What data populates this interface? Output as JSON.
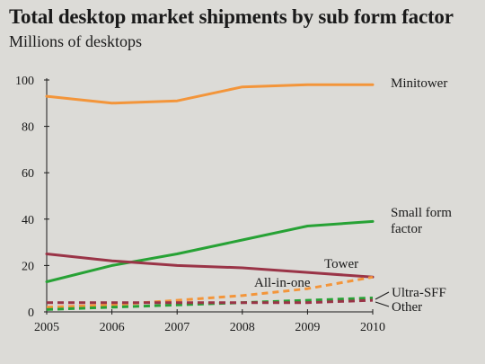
{
  "chart_data": {
    "type": "line",
    "title": "Total desktop market shipments by sub form factor",
    "subtitle": "Millions of desktops",
    "xlabel": "",
    "ylabel": "",
    "x": [
      2005,
      2006,
      2007,
      2008,
      2009,
      2010
    ],
    "x_ticks": [
      "2005",
      "2006",
      "2007",
      "2008",
      "2009",
      "2010"
    ],
    "y_ticks": [
      "0",
      "20",
      "40",
      "60",
      "80",
      "100"
    ],
    "ylim": [
      0,
      100
    ],
    "grid": false,
    "legend": "direct labels at line ends",
    "series": [
      {
        "name": "Minitower",
        "label_lines": [
          "Minitower"
        ],
        "values": [
          93,
          90,
          91,
          97,
          98,
          98
        ],
        "color": "#f3953a",
        "dash": "solid"
      },
      {
        "name": "Small form factor",
        "label_lines": [
          "Small form",
          "factor"
        ],
        "values": [
          13,
          20,
          25,
          31,
          37,
          39
        ],
        "color": "#27a235",
        "dash": "solid"
      },
      {
        "name": "Tower",
        "label_lines": [
          "Tower"
        ],
        "values": [
          25,
          22,
          20,
          19,
          17,
          15
        ],
        "color": "#9a3447",
        "dash": "solid"
      },
      {
        "name": "All-in-one",
        "label_lines": [
          "All-in-one"
        ],
        "values": [
          2,
          3,
          5,
          7,
          10,
          15
        ],
        "color": "#f3953a",
        "dash": "dashed"
      },
      {
        "name": "Ultra-SFF",
        "label_lines": [
          "Ultra-SFF"
        ],
        "values": [
          1,
          2,
          3,
          4,
          5,
          6
        ],
        "color": "#27a235",
        "dash": "dashed"
      },
      {
        "name": "Other",
        "label_lines": [
          "Other"
        ],
        "values": [
          4,
          4,
          4,
          4,
          4,
          5
        ],
        "color": "#9a3447",
        "dash": "dashed"
      }
    ]
  }
}
